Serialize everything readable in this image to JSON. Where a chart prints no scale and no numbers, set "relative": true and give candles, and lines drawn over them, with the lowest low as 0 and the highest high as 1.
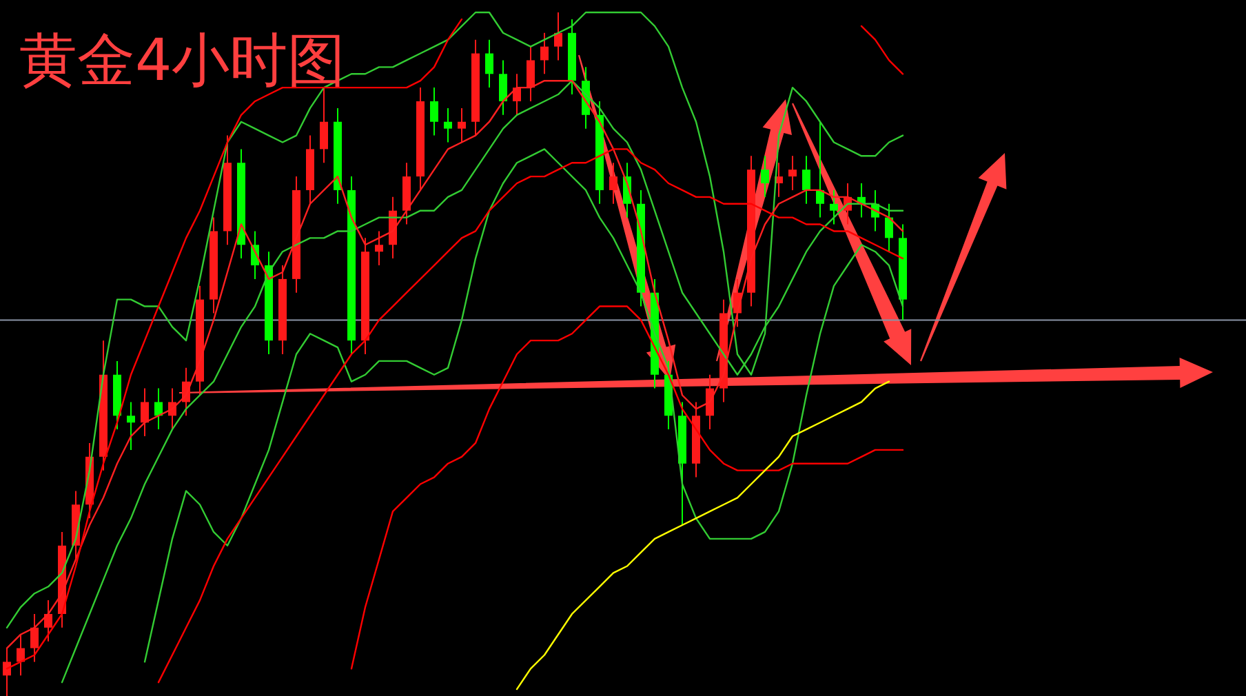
{
  "chart_data": {
    "type": "candlestick",
    "title": "黄金4小时图",
    "relative": true,
    "categories": [
      null,
      null,
      null,
      null,
      null,
      null,
      null,
      null,
      null,
      null,
      null,
      null,
      null,
      null,
      null,
      null,
      null,
      null,
      null,
      null,
      null,
      null,
      null,
      null,
      null,
      null,
      null,
      null,
      null,
      null,
      null,
      null,
      null,
      null,
      null,
      null,
      null,
      null,
      null,
      null,
      null,
      null,
      null,
      null,
      null,
      null,
      null,
      null,
      null,
      null,
      null,
      null,
      null,
      null,
      null,
      null,
      null,
      null,
      null,
      null,
      null,
      null,
      null,
      null,
      null,
      null
    ],
    "ohlc": [
      [
        0.03,
        0.07,
        0.0,
        0.05
      ],
      [
        0.05,
        0.09,
        0.03,
        0.07
      ],
      [
        0.07,
        0.12,
        0.05,
        0.1
      ],
      [
        0.1,
        0.14,
        0.08,
        0.12
      ],
      [
        0.12,
        0.24,
        0.1,
        0.22
      ],
      [
        0.22,
        0.3,
        0.2,
        0.28
      ],
      [
        0.28,
        0.37,
        0.26,
        0.35
      ],
      [
        0.35,
        0.52,
        0.33,
        0.47
      ],
      [
        0.47,
        0.49,
        0.39,
        0.41
      ],
      [
        0.41,
        0.43,
        0.36,
        0.4
      ],
      [
        0.4,
        0.45,
        0.38,
        0.43
      ],
      [
        0.43,
        0.45,
        0.39,
        0.41
      ],
      [
        0.41,
        0.45,
        0.39,
        0.43
      ],
      [
        0.43,
        0.48,
        0.41,
        0.46
      ],
      [
        0.46,
        0.6,
        0.44,
        0.58
      ],
      [
        0.58,
        0.7,
        0.56,
        0.68
      ],
      [
        0.68,
        0.82,
        0.66,
        0.78
      ],
      [
        0.78,
        0.8,
        0.64,
        0.66
      ],
      [
        0.66,
        0.68,
        0.61,
        0.63
      ],
      [
        0.63,
        0.65,
        0.5,
        0.52
      ],
      [
        0.52,
        0.63,
        0.5,
        0.61
      ],
      [
        0.61,
        0.76,
        0.59,
        0.74
      ],
      [
        0.74,
        0.82,
        0.72,
        0.8
      ],
      [
        0.8,
        0.89,
        0.78,
        0.84
      ],
      [
        0.84,
        0.86,
        0.72,
        0.74
      ],
      [
        0.74,
        0.76,
        0.5,
        0.52
      ],
      [
        0.52,
        0.67,
        0.5,
        0.65
      ],
      [
        0.65,
        0.68,
        0.63,
        0.66
      ],
      [
        0.66,
        0.73,
        0.64,
        0.71
      ],
      [
        0.71,
        0.78,
        0.69,
        0.76
      ],
      [
        0.76,
        0.89,
        0.74,
        0.87
      ],
      [
        0.87,
        0.89,
        0.82,
        0.84
      ],
      [
        0.84,
        0.86,
        0.81,
        0.83
      ],
      [
        0.83,
        0.86,
        0.81,
        0.84
      ],
      [
        0.84,
        0.96,
        0.82,
        0.94
      ],
      [
        0.94,
        0.96,
        0.89,
        0.91
      ],
      [
        0.91,
        0.93,
        0.85,
        0.87
      ],
      [
        0.87,
        0.91,
        0.85,
        0.89
      ],
      [
        0.89,
        0.95,
        0.87,
        0.93
      ],
      [
        0.93,
        0.97,
        0.91,
        0.95
      ],
      [
        0.95,
        1.0,
        0.93,
        0.97
      ],
      [
        0.97,
        0.99,
        0.88,
        0.9
      ],
      [
        0.9,
        0.92,
        0.83,
        0.85
      ],
      [
        0.85,
        0.87,
        0.72,
        0.74
      ],
      [
        0.74,
        0.78,
        0.72,
        0.76
      ],
      [
        0.76,
        0.78,
        0.7,
        0.72
      ],
      [
        0.72,
        0.74,
        0.57,
        0.59
      ],
      [
        0.59,
        0.61,
        0.45,
        0.47
      ],
      [
        0.47,
        0.49,
        0.39,
        0.41
      ],
      [
        0.41,
        0.43,
        0.25,
        0.34
      ],
      [
        0.34,
        0.43,
        0.32,
        0.41
      ],
      [
        0.41,
        0.47,
        0.39,
        0.45
      ],
      [
        0.45,
        0.58,
        0.43,
        0.56
      ],
      [
        0.56,
        0.61,
        0.54,
        0.59
      ],
      [
        0.59,
        0.79,
        0.57,
        0.77
      ],
      [
        0.77,
        0.79,
        0.73,
        0.75
      ],
      [
        0.75,
        0.78,
        0.73,
        0.76
      ],
      [
        0.76,
        0.79,
        0.74,
        0.77
      ],
      [
        0.77,
        0.79,
        0.72,
        0.74
      ],
      [
        0.74,
        0.84,
        0.7,
        0.72
      ],
      [
        0.72,
        0.74,
        0.69,
        0.71
      ],
      [
        0.71,
        0.75,
        0.69,
        0.73
      ],
      [
        0.73,
        0.75,
        0.7,
        0.72
      ],
      [
        0.72,
        0.74,
        0.68,
        0.7
      ],
      [
        0.7,
        0.72,
        0.65,
        0.67
      ],
      [
        0.67,
        0.69,
        0.55,
        0.58
      ]
    ],
    "colors": [
      "#ff1a1a",
      "#ff1a1a",
      "#ff1a1a",
      "#ff1a1a",
      "#ff1a1a",
      "#ff1a1a",
      "#ff1a1a",
      "#ff1a1a",
      "#00ff00",
      "#00ff00",
      "#ff1a1a",
      "#00ff00",
      "#ff1a1a",
      "#ff1a1a",
      "#ff1a1a",
      "#ff1a1a",
      "#ff1a1a",
      "#00ff00",
      "#00ff00",
      "#00ff00",
      "#ff1a1a",
      "#ff1a1a",
      "#ff1a1a",
      "#ff1a1a",
      "#00ff00",
      "#00ff00",
      "#ff1a1a",
      "#ff1a1a",
      "#ff1a1a",
      "#ff1a1a",
      "#ff1a1a",
      "#00ff00",
      "#00ff00",
      "#ff1a1a",
      "#ff1a1a",
      "#00ff00",
      "#00ff00",
      "#ff1a1a",
      "#ff1a1a",
      "#ff1a1a",
      "#ff1a1a",
      "#00ff00",
      "#00ff00",
      "#00ff00",
      "#ff1a1a",
      "#00ff00",
      "#00ff00",
      "#00ff00",
      "#00ff00",
      "#00ff00",
      "#ff1a1a",
      "#ff1a1a",
      "#ff1a1a",
      "#ff1a1a",
      "#ff1a1a",
      "#00ff00",
      "#ff1a1a",
      "#ff1a1a",
      "#00ff00",
      "#00ff00",
      "#00ff00",
      "#ff1a1a",
      "#00ff00",
      "#00ff00",
      "#00ff00",
      "#00ff00"
    ],
    "series": [
      {
        "type": "line",
        "color": "#33cc33",
        "values": [
          0.1,
          0.13,
          0.15,
          0.16,
          0.18,
          0.23,
          0.33,
          0.47,
          0.58,
          0.58,
          0.57,
          0.57,
          0.54,
          0.52,
          0.61,
          0.71,
          0.81,
          0.84,
          0.83,
          0.82,
          0.81,
          0.82,
          0.86,
          0.89,
          0.9,
          0.91,
          0.91,
          0.92,
          0.92,
          0.93,
          0.94,
          0.95,
          0.96,
          0.98,
          1.0,
          1.0,
          0.97,
          0.96,
          0.95,
          0.96,
          0.97,
          0.98,
          1.0,
          1.0,
          1.0,
          1.0,
          1.0,
          0.98,
          0.95,
          0.89,
          0.84,
          0.76,
          0.65,
          0.5,
          0.47,
          0.53,
          0.82,
          0.89,
          0.87,
          0.84,
          0.81,
          0.8,
          0.79,
          0.79,
          0.81,
          0.82
        ]
      },
      {
        "type": "line",
        "color": "#33cc33",
        "values": [
          null,
          null,
          null,
          null,
          0.02,
          0.07,
          0.12,
          0.17,
          0.22,
          0.26,
          0.31,
          0.35,
          0.39,
          0.42,
          0.44,
          0.46,
          0.5,
          0.54,
          0.57,
          0.62,
          0.65,
          0.66,
          0.67,
          0.67,
          0.68,
          0.68,
          0.69,
          0.7,
          0.7,
          0.7,
          0.71,
          0.71,
          0.73,
          0.74,
          0.77,
          0.8,
          0.83,
          0.85,
          0.86,
          0.87,
          0.88,
          0.9,
          0.88,
          0.86,
          0.83,
          0.81,
          0.77,
          0.71,
          0.65,
          0.59,
          0.56,
          0.53,
          0.5,
          0.47,
          0.5,
          0.54,
          0.57,
          0.61,
          0.65,
          0.68,
          0.7,
          0.72,
          0.72,
          0.72,
          0.71,
          0.71
        ]
      },
      {
        "type": "line",
        "color": "#33cc33",
        "values": [
          null,
          null,
          null,
          null,
          null,
          null,
          null,
          null,
          null,
          null,
          0.05,
          0.14,
          0.23,
          0.3,
          0.28,
          0.24,
          0.22,
          0.26,
          0.31,
          0.36,
          0.43,
          0.5,
          0.53,
          0.52,
          0.51,
          0.46,
          0.47,
          0.49,
          0.49,
          0.49,
          0.48,
          0.47,
          0.48,
          0.55,
          0.64,
          0.71,
          0.75,
          0.78,
          0.79,
          0.8,
          0.78,
          0.76,
          0.74,
          0.7,
          0.67,
          0.63,
          0.59,
          0.53,
          0.48,
          0.31,
          0.26,
          0.23,
          0.23,
          0.23,
          0.23,
          0.24,
          0.27,
          0.34,
          0.44,
          0.53,
          0.6,
          0.63,
          0.66,
          0.65,
          0.63,
          0.57
        ]
      },
      {
        "type": "line",
        "color": "#ff2020",
        "values": [
          0.07,
          0.09,
          0.1,
          0.12,
          0.15,
          0.2,
          0.25,
          0.29,
          0.34,
          0.38,
          0.4,
          0.41,
          0.42,
          0.44,
          0.49,
          0.55,
          0.62,
          0.69,
          0.65,
          0.61,
          0.62,
          0.67,
          0.72,
          0.74,
          0.76,
          0.7,
          0.66,
          0.67,
          0.68,
          0.71,
          0.74,
          0.77,
          0.8,
          0.81,
          0.82,
          0.84,
          0.87,
          0.89,
          0.89,
          0.9,
          0.9,
          0.9,
          0.87,
          0.84,
          0.8,
          0.75,
          0.68,
          0.59,
          0.52,
          0.44,
          0.42,
          0.43,
          0.47,
          0.56,
          0.64,
          0.69,
          0.72,
          0.73,
          0.74,
          0.74,
          0.73,
          0.73,
          0.72,
          0.71,
          0.7,
          0.68
        ]
      },
      {
        "type": "line",
        "color": "#ff0000",
        "values": [
          0.04,
          0.05,
          0.06,
          0.09,
          0.12,
          0.19,
          0.27,
          0.34,
          0.4,
          0.47,
          0.52,
          0.57,
          0.62,
          0.67,
          0.71,
          0.76,
          0.81,
          0.85,
          0.87,
          0.88,
          0.89,
          0.89,
          0.89,
          0.89,
          0.89,
          0.89,
          0.89,
          0.89,
          0.89,
          0.89,
          0.9,
          0.92,
          0.96,
          0.99,
          null,
          null,
          null,
          null,
          null,
          null,
          null,
          null,
          null,
          null,
          null,
          null,
          null,
          null,
          null,
          null,
          null,
          null,
          null,
          null,
          null,
          null,
          null,
          null,
          null,
          null,
          null,
          null,
          0.98,
          0.96,
          0.93,
          0.91
        ]
      },
      {
        "type": "line",
        "color": "#ff0000",
        "values": [
          null,
          null,
          null,
          null,
          null,
          null,
          null,
          null,
          null,
          null,
          null,
          0.02,
          0.06,
          0.1,
          0.14,
          0.19,
          0.23,
          0.26,
          0.29,
          0.32,
          0.35,
          0.38,
          0.41,
          0.44,
          0.47,
          0.5,
          0.52,
          0.55,
          0.57,
          0.59,
          0.61,
          0.63,
          0.65,
          0.67,
          0.68,
          0.71,
          0.73,
          0.75,
          0.76,
          0.76,
          0.77,
          0.78,
          0.78,
          0.79,
          0.8,
          0.8,
          0.78,
          0.77,
          0.75,
          0.74,
          0.73,
          0.73,
          0.72,
          0.72,
          0.72,
          0.71,
          0.7,
          0.7,
          0.69,
          0.69,
          0.68,
          0.68,
          0.67,
          0.66,
          0.65,
          0.64
        ]
      },
      {
        "type": "line",
        "color": "#ff0000",
        "values": [
          null,
          null,
          null,
          null,
          null,
          null,
          null,
          null,
          null,
          null,
          null,
          null,
          null,
          null,
          null,
          null,
          null,
          null,
          null,
          null,
          null,
          null,
          null,
          null,
          null,
          0.04,
          0.13,
          0.2,
          0.27,
          0.29,
          0.31,
          0.32,
          0.34,
          0.35,
          0.37,
          0.42,
          0.46,
          0.5,
          0.52,
          0.52,
          0.52,
          0.53,
          0.55,
          0.57,
          0.57,
          0.57,
          0.55,
          0.51,
          0.47,
          0.42,
          0.39,
          0.36,
          0.34,
          0.33,
          0.33,
          0.33,
          0.33,
          0.34,
          0.34,
          0.34,
          0.34,
          0.34,
          0.35,
          0.36,
          0.36,
          0.36
        ]
      },
      {
        "type": "line",
        "color": "#ffff00",
        "values": [
          null,
          null,
          null,
          null,
          null,
          null,
          null,
          null,
          null,
          null,
          null,
          null,
          null,
          null,
          null,
          null,
          null,
          null,
          null,
          null,
          null,
          null,
          null,
          null,
          null,
          null,
          null,
          null,
          null,
          null,
          null,
          null,
          null,
          null,
          null,
          null,
          null,
          0.01,
          0.04,
          0.06,
          0.09,
          0.12,
          0.14,
          0.16,
          0.18,
          0.19,
          0.21,
          0.23,
          0.24,
          0.25,
          0.26,
          0.27,
          0.28,
          0.29,
          0.31,
          0.33,
          0.35,
          0.38,
          0.39,
          0.4,
          0.41,
          0.42,
          0.43,
          0.45,
          0.46,
          null
        ]
      }
    ],
    "ref_lines": [
      {
        "axis": "y",
        "value": 0.55,
        "color": "#8a93a6"
      }
    ]
  }
}
